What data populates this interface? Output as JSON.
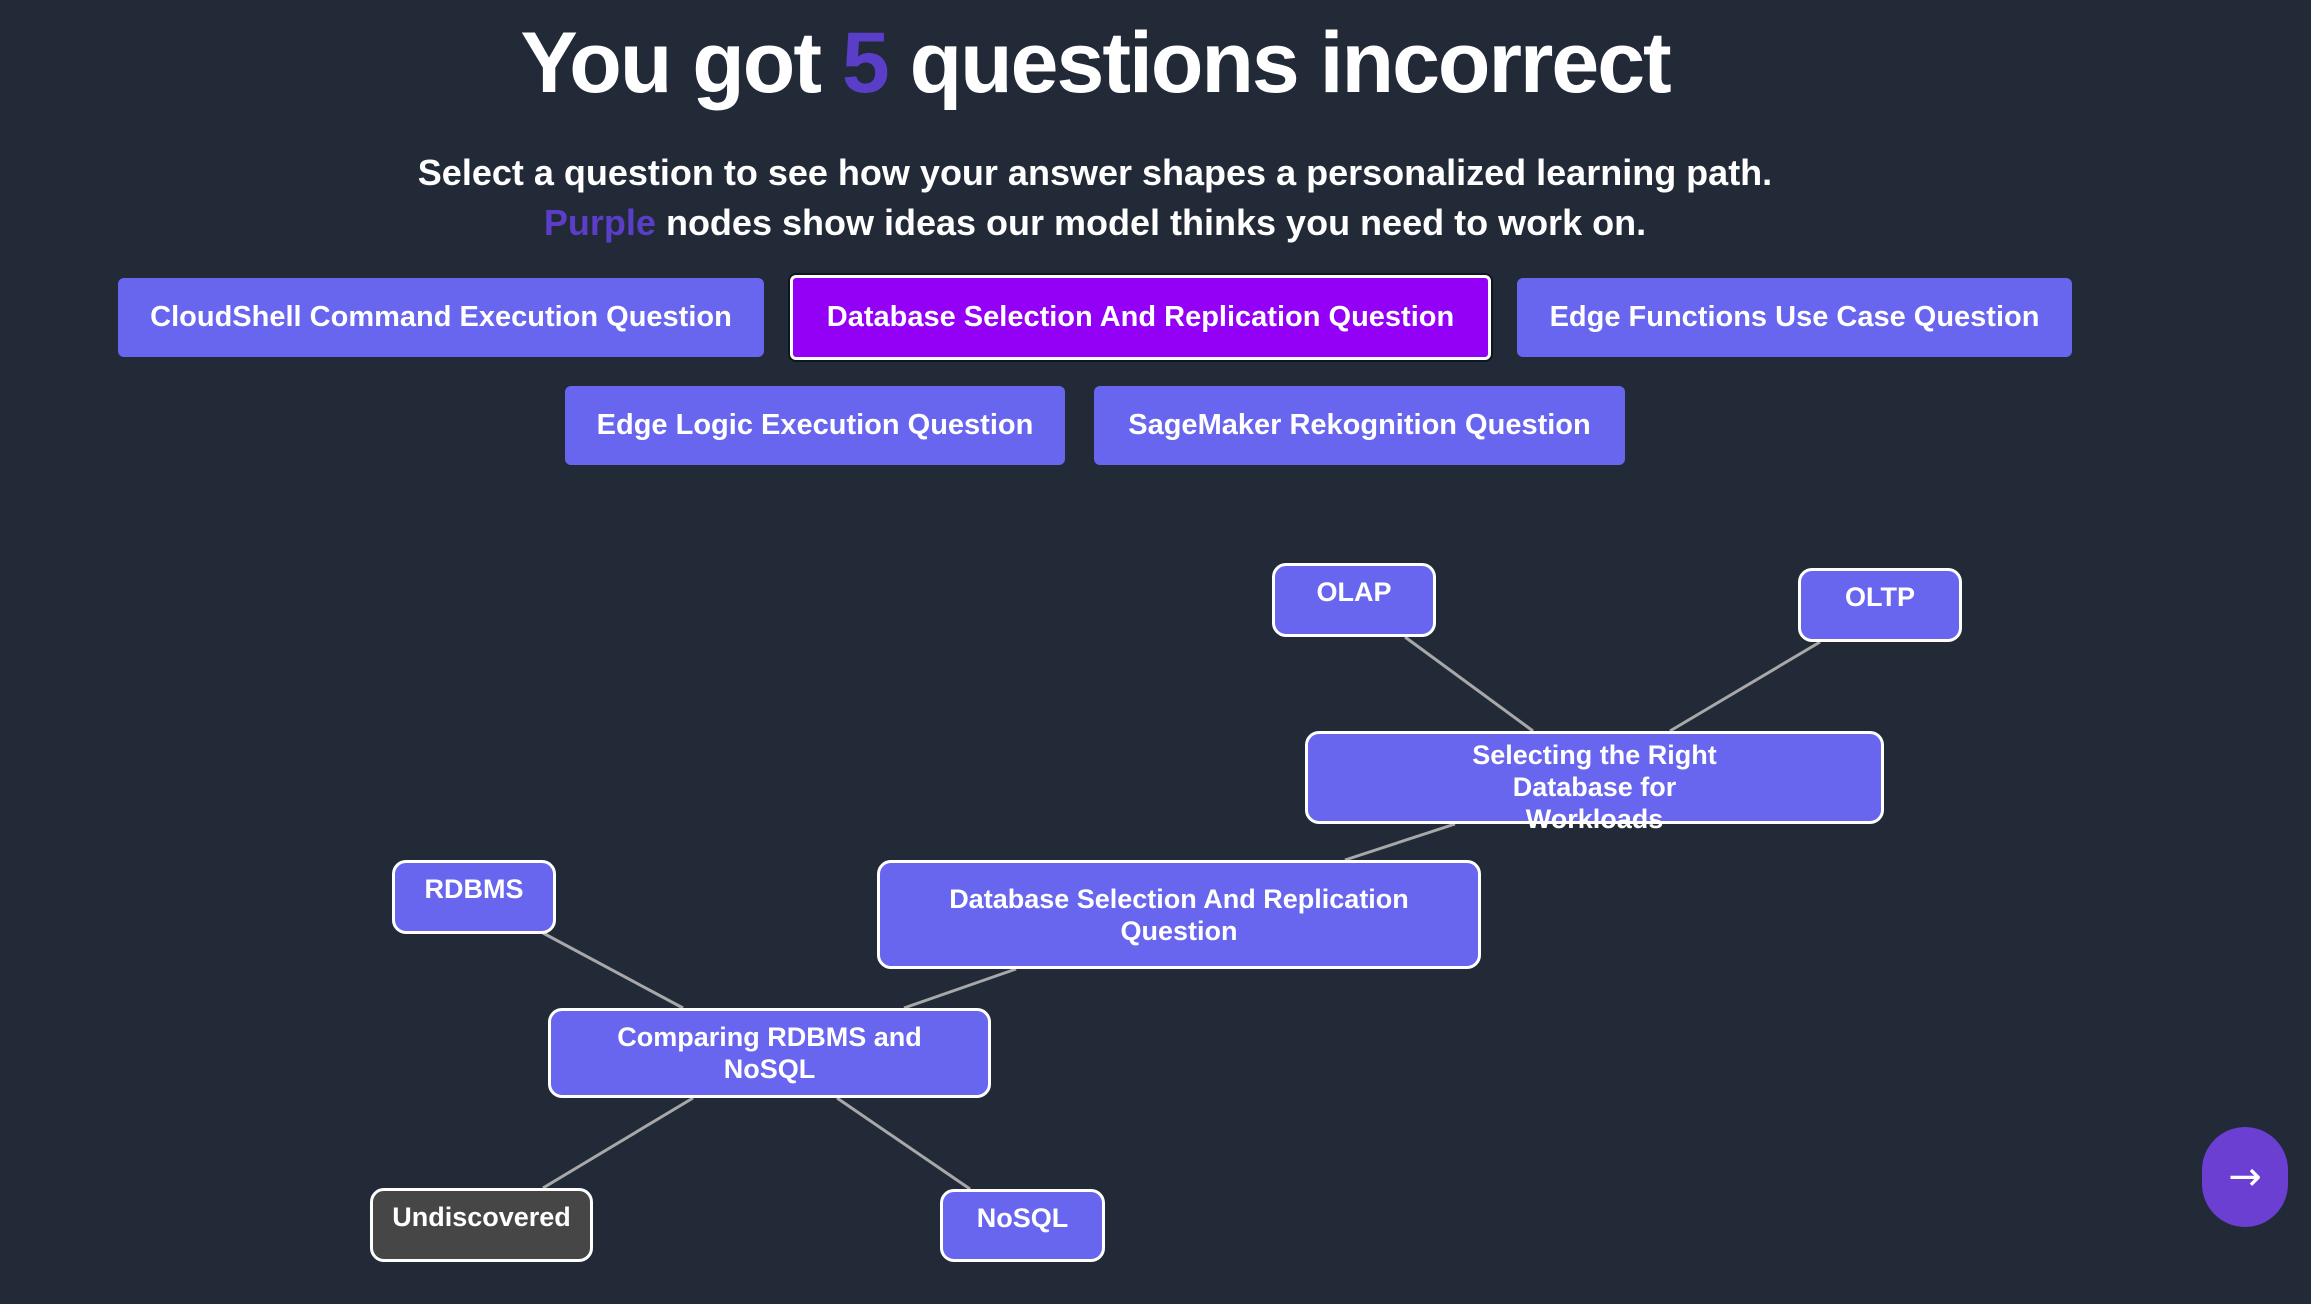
{
  "header": {
    "title_prefix": "You got",
    "title_count": "5",
    "title_suffix": "questions incorrect",
    "subtitle_line1": "Select a question to see how your answer shapes a personalized learning path.",
    "subtitle_accent": "Purple",
    "subtitle_line2_rest": "nodes show ideas our model thinks you need to work on."
  },
  "questions": [
    {
      "label": "CloudShell Command Execution Question",
      "selected": false
    },
    {
      "label": "Database Selection And Replication Question",
      "selected": true
    },
    {
      "label": "Edge Functions Use Case Question",
      "selected": false
    },
    {
      "label": "Edge Logic Execution Question",
      "selected": false
    },
    {
      "label": "SageMaker Rekognition Question",
      "selected": false
    }
  ],
  "graph": {
    "nodes": [
      {
        "id": "olap",
        "label": "OLAP",
        "status": "purple"
      },
      {
        "id": "oltp",
        "label": "OLTP",
        "status": "purple"
      },
      {
        "id": "selecting",
        "label": "Selecting the Right Database for Workloads",
        "status": "purple"
      },
      {
        "id": "root",
        "label": "Database Selection And Replication Question",
        "status": "purple"
      },
      {
        "id": "rdbms",
        "label": "RDBMS",
        "status": "purple"
      },
      {
        "id": "comparing",
        "label": "Comparing RDBMS and NoSQL",
        "status": "purple"
      },
      {
        "id": "undiscovered",
        "label": "Undiscovered",
        "status": "undiscovered"
      },
      {
        "id": "nosql",
        "label": "NoSQL",
        "status": "purple"
      }
    ],
    "edges": [
      [
        "olap",
        "selecting"
      ],
      [
        "oltp",
        "selecting"
      ],
      [
        "selecting",
        "root"
      ],
      [
        "root",
        "comparing"
      ],
      [
        "rdbms",
        "comparing"
      ],
      [
        "comparing",
        "undiscovered"
      ],
      [
        "comparing",
        "nosql"
      ]
    ]
  },
  "next_button": {
    "glyph": "→",
    "icon": "arrow-right-icon"
  },
  "colors": {
    "background": "#222a38",
    "node_purple": "#6866ee",
    "selected_button": "#9400f5",
    "accent": "#5a3ec8",
    "undiscovered": "#464646",
    "edge": "#a8a8a8"
  }
}
